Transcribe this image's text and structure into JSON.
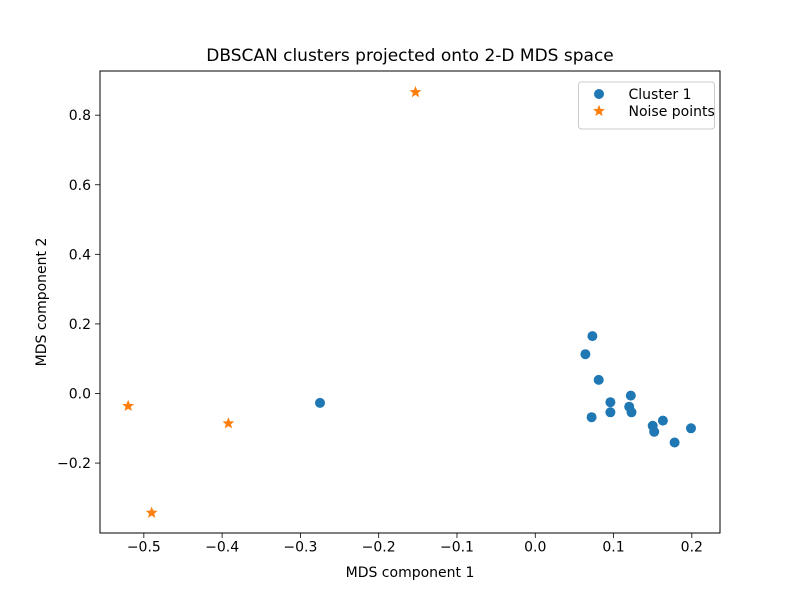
{
  "chart_data": {
    "type": "scatter",
    "title": "DBSCAN clusters projected onto 2-D MDS space",
    "xlabel": "MDS component 1",
    "ylabel": "MDS component 2",
    "xlim": [
      -0.556,
      0.236
    ],
    "ylim": [
      -0.401,
      0.927
    ],
    "grid": false,
    "background_color": "#ffffff",
    "x_ticks": {
      "values": [
        -0.5,
        -0.4,
        -0.3,
        -0.2,
        -0.1,
        0.0,
        0.1,
        0.2
      ],
      "labels": [
        "−0.5",
        "−0.4",
        "−0.3",
        "−0.2",
        "−0.1",
        "0.0",
        "0.1",
        "0.2"
      ]
    },
    "y_ticks": {
      "values": [
        -0.2,
        0.0,
        0.2,
        0.4,
        0.6,
        0.8
      ],
      "labels": [
        "−0.2",
        "0.0",
        "0.2",
        "0.4",
        "0.6",
        "0.8"
      ]
    },
    "legend": {
      "position": "upper right",
      "items": [
        "Cluster 1",
        "Noise points"
      ]
    },
    "series": [
      {
        "name": "Cluster 1",
        "marker": "circle",
        "color": "#1f77b4",
        "points": [
          [
            -0.275,
            -0.027
          ],
          [
            0.064,
            0.113
          ],
          [
            0.072,
            -0.068
          ],
          [
            0.073,
            0.165
          ],
          [
            0.081,
            0.039
          ],
          [
            0.096,
            -0.025
          ],
          [
            0.096,
            -0.054
          ],
          [
            0.12,
            -0.038
          ],
          [
            0.122,
            -0.006
          ],
          [
            0.123,
            -0.054
          ],
          [
            0.15,
            -0.093
          ],
          [
            0.152,
            -0.11
          ],
          [
            0.163,
            -0.078
          ],
          [
            0.178,
            -0.141
          ],
          [
            0.199,
            -0.1
          ]
        ]
      },
      {
        "name": "Noise points",
        "marker": "star",
        "color": "#ff7f0e",
        "points": [
          [
            -0.52,
            -0.036
          ],
          [
            -0.49,
            -0.343
          ],
          [
            -0.392,
            -0.086
          ],
          [
            -0.153,
            0.866
          ]
        ]
      }
    ]
  }
}
